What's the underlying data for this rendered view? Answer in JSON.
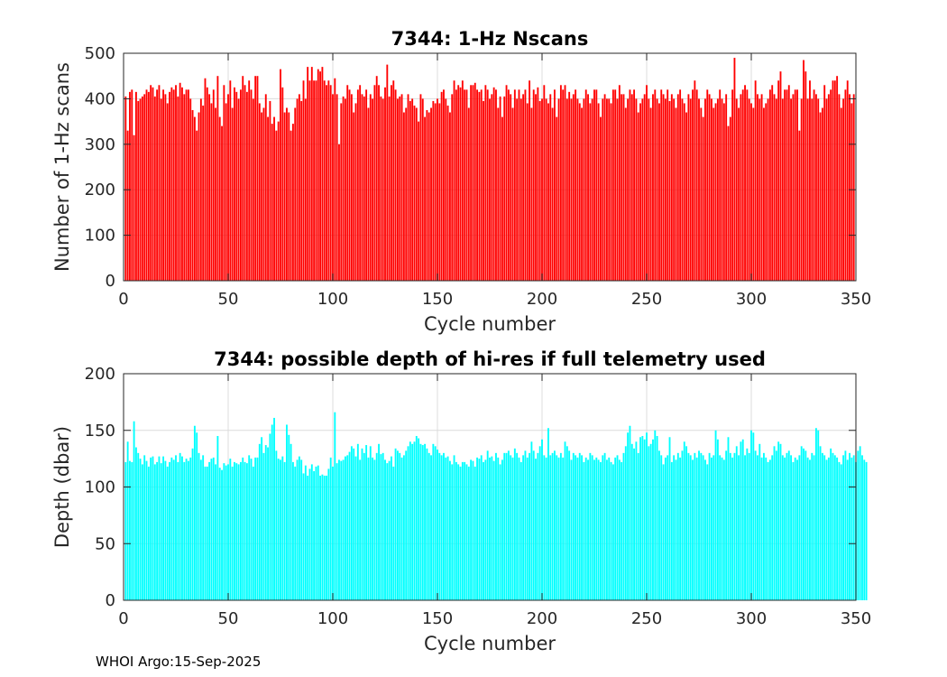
{
  "footer": "WHOI Argo:15-Sep-2025",
  "chart_data": [
    {
      "type": "bar",
      "title": "7344: 1-Hz Nscans",
      "xlabel": "Cycle number",
      "ylabel": "Number of 1-Hz scans",
      "xlim": [
        0,
        350
      ],
      "ylim": [
        0,
        500
      ],
      "xticks": [
        0,
        50,
        100,
        150,
        200,
        250,
        300,
        350
      ],
      "yticks": [
        0,
        100,
        200,
        300,
        400,
        500
      ],
      "grid": true,
      "color": "#ff0000",
      "x_start": 1,
      "values": [
        405,
        330,
        415,
        420,
        320,
        415,
        395,
        400,
        405,
        410,
        420,
        415,
        430,
        425,
        405,
        420,
        430,
        400,
        420,
        410,
        390,
        415,
        425,
        420,
        430,
        405,
        435,
        425,
        410,
        420,
        420,
        400,
        375,
        360,
        330,
        370,
        400,
        385,
        445,
        425,
        410,
        390,
        420,
        380,
        450,
        360,
        340,
        430,
        390,
        410,
        440,
        380,
        425,
        415,
        400,
        420,
        450,
        430,
        415,
        440,
        420,
        400,
        450,
        450,
        390,
        370,
        380,
        410,
        360,
        395,
        345,
        360,
        330,
        350,
        465,
        425,
        370,
        380,
        370,
        330,
        345,
        380,
        400,
        410,
        395,
        440,
        400,
        470,
        440,
        470,
        440,
        440,
        465,
        460,
        470,
        440,
        430,
        440,
        430,
        410,
        445,
        410,
        300,
        390,
        405,
        400,
        430,
        420,
        410,
        370,
        390,
        420,
        430,
        410,
        405,
        420,
        380,
        410,
        400,
        430,
        450,
        430,
        405,
        400,
        425,
        475,
        405,
        430,
        440,
        420,
        400,
        405,
        410,
        370,
        380,
        410,
        395,
        400,
        385,
        380,
        350,
        410,
        400,
        360,
        375,
        370,
        380,
        395,
        390,
        400,
        390,
        415,
        420,
        400,
        385,
        370,
        410,
        440,
        420,
        430,
        425,
        440,
        420,
        420,
        380,
        430,
        430,
        435,
        420,
        415,
        420,
        395,
        430,
        420,
        400,
        410,
        425,
        420,
        380,
        405,
        360,
        405,
        430,
        420,
        410,
        380,
        420,
        400,
        420,
        400,
        410,
        420,
        390,
        440,
        380,
        420,
        410,
        425,
        395,
        400,
        430,
        400,
        390,
        410,
        380,
        420,
        360,
        400,
        430,
        420,
        430,
        400,
        415,
        400,
        410,
        420,
        400,
        390,
        380,
        400,
        420,
        410,
        390,
        400,
        420,
        420,
        390,
        360,
        400,
        410,
        400,
        400,
        390,
        420,
        420,
        400,
        430,
        410,
        410,
        380,
        400,
        420,
        410,
        420,
        400,
        370,
        390,
        400,
        410,
        430,
        400,
        380,
        410,
        420,
        400,
        390,
        420,
        410,
        400,
        420,
        395,
        410,
        400,
        380,
        410,
        420,
        400,
        390,
        370,
        410,
        400,
        420,
        440,
        420,
        400,
        380,
        360,
        400,
        420,
        410,
        400,
        380,
        390,
        400,
        420,
        400,
        390,
        410,
        340,
        360,
        420,
        490,
        400,
        380,
        410,
        420,
        430,
        420,
        400,
        390,
        380,
        440,
        410,
        400,
        410,
        380,
        390,
        400,
        420,
        430,
        410,
        400,
        440,
        460,
        400,
        420,
        420,
        430,
        400,
        410,
        420,
        420,
        330,
        400,
        485,
        460,
        400,
        440,
        400,
        420,
        410,
        400,
        370,
        380,
        430,
        400,
        410,
        420,
        440,
        440,
        450,
        410,
        380,
        400,
        420,
        440,
        410,
        390,
        410
      ]
    },
    {
      "type": "bar",
      "title": "7344: possible depth of hi-res if full telemetry used",
      "xlabel": "Cycle number",
      "ylabel": "Depth (dbar)",
      "xlim": [
        0,
        350
      ],
      "ylim": [
        0,
        200
      ],
      "xticks": [
        0,
        50,
        100,
        150,
        200,
        250,
        300,
        350
      ],
      "yticks": [
        0,
        50,
        100,
        150,
        200
      ],
      "grid": true,
      "color": "#00ffff",
      "x_start": 1,
      "values": [
        122,
        140,
        123,
        122,
        158,
        135,
        130,
        125,
        120,
        128,
        123,
        118,
        126,
        127,
        120,
        122,
        127,
        121,
        127,
        123,
        118,
        122,
        126,
        124,
        128,
        122,
        130,
        127,
        122,
        125,
        123,
        126,
        134,
        154,
        148,
        130,
        124,
        128,
        118,
        118,
        122,
        125,
        126,
        120,
        145,
        117,
        115,
        121,
        119,
        120,
        125,
        118,
        122,
        121,
        120,
        122,
        126,
        122,
        121,
        128,
        125,
        118,
        126,
        126,
        138,
        144,
        130,
        137,
        135,
        147,
        155,
        161,
        132,
        125,
        124,
        127,
        122,
        155,
        146,
        138,
        122,
        118,
        124,
        127,
        124,
        112,
        119,
        110,
        116,
        120,
        114,
        118,
        119,
        110,
        111,
        110,
        110,
        116,
        126,
        118,
        166,
        121,
        124,
        123,
        124,
        127,
        128,
        131,
        136,
        134,
        127,
        138,
        124,
        134,
        130,
        137,
        126,
        136,
        126,
        124,
        130,
        138,
        129,
        130,
        124,
        121,
        123,
        127,
        118,
        134,
        132,
        130,
        126,
        128,
        132,
        136,
        140,
        138,
        140,
        145,
        143,
        138,
        137,
        138,
        134,
        130,
        128,
        138,
        136,
        133,
        130,
        128,
        130,
        126,
        127,
        123,
        120,
        128,
        122,
        120,
        118,
        122,
        122,
        120,
        118,
        124,
        123,
        118,
        126,
        125,
        128,
        122,
        124,
        132,
        126,
        127,
        123,
        130,
        126,
        120,
        124,
        130,
        130,
        132,
        128,
        126,
        134,
        130,
        126,
        122,
        128,
        132,
        126,
        130,
        140,
        132,
        125,
        130,
        136,
        142,
        128,
        126,
        152,
        128,
        130,
        132,
        128,
        126,
        130,
        126,
        140,
        136,
        132,
        124,
        130,
        128,
        126,
        130,
        128,
        122,
        126,
        124,
        130,
        128,
        124,
        126,
        124,
        122,
        128,
        130,
        124,
        126,
        122,
        120,
        126,
        128,
        124,
        122,
        130,
        136,
        148,
        154,
        138,
        134,
        140,
        130,
        144,
        145,
        142,
        148,
        136,
        138,
        142,
        150,
        145,
        132,
        128,
        120,
        126,
        128,
        144,
        122,
        128,
        124,
        130,
        126,
        132,
        140,
        136,
        130,
        128,
        124,
        130,
        126,
        132,
        130,
        128,
        124,
        120,
        130,
        126,
        128,
        150,
        142,
        128,
        126,
        124,
        132,
        144,
        130,
        126,
        130,
        136,
        128,
        140,
        142,
        128,
        134,
        130,
        150,
        148,
        132,
        128,
        138,
        126,
        130,
        126,
        122,
        124,
        128,
        136,
        132,
        140,
        138,
        128,
        126,
        130,
        132,
        128,
        122,
        126,
        124,
        128,
        136,
        134,
        132,
        126,
        124,
        130,
        128,
        152,
        150,
        136,
        130,
        128,
        124,
        126,
        134,
        130,
        128,
        126,
        122,
        120,
        128,
        132,
        124,
        130,
        126,
        128,
        122,
        132,
        136,
        128,
        124,
        122
      ]
    }
  ]
}
